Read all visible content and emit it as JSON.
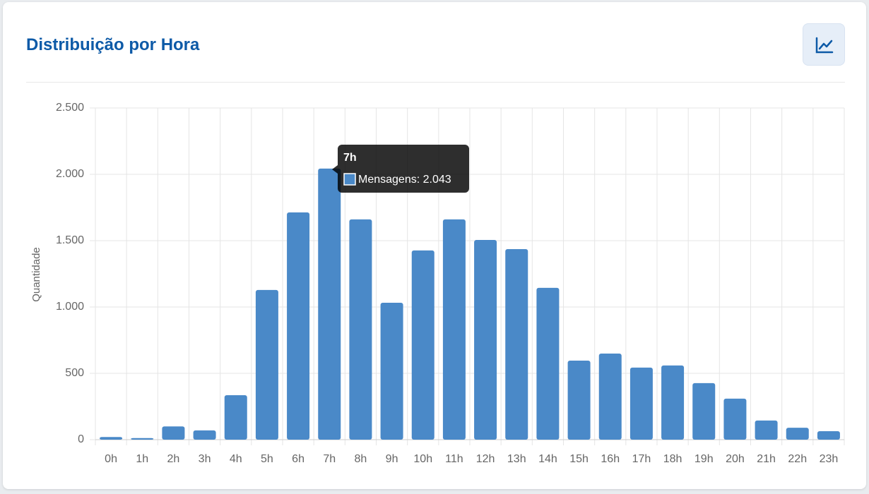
{
  "header": {
    "title": "Distribuição por Hora"
  },
  "chart_data": {
    "type": "bar",
    "y_label": "Quantidade",
    "categories": [
      "0h",
      "1h",
      "2h",
      "3h",
      "4h",
      "5h",
      "6h",
      "7h",
      "8h",
      "9h",
      "10h",
      "11h",
      "12h",
      "13h",
      "14h",
      "15h",
      "16h",
      "17h",
      "18h",
      "19h",
      "20h",
      "21h",
      "22h",
      "23h"
    ],
    "series": [
      {
        "name": "Mensagens",
        "color": "#4a89c8",
        "values": [
          20,
          12,
          100,
          70,
          335,
          1128,
          1713,
          2043,
          1660,
          1032,
          1426,
          1660,
          1505,
          1436,
          1144,
          596,
          649,
          543,
          559,
          426,
          309,
          144,
          90,
          64
        ]
      }
    ],
    "ylim": [
      0,
      2500
    ],
    "yticks": [
      0,
      500,
      {
        "value": 1000,
        "label": "1.000"
      },
      {
        "value": 1500,
        "label": "1.500"
      },
      {
        "value": 2000,
        "label": "2.000"
      },
      {
        "value": 2500,
        "label": "2.500"
      }
    ],
    "grid": true,
    "tooltip": {
      "title": "7h",
      "text": "Mensagens: 2.043"
    }
  }
}
